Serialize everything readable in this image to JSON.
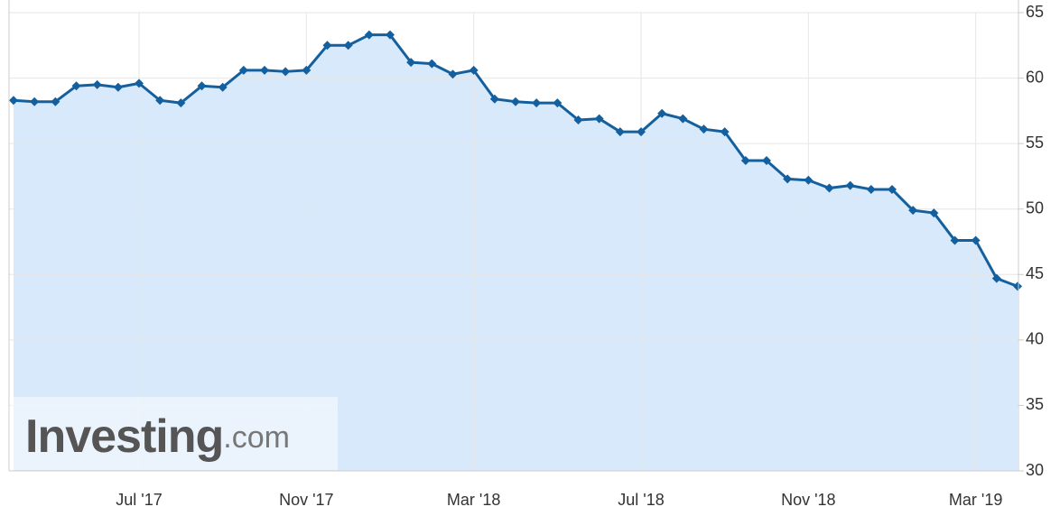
{
  "chart_data": {
    "type": "area",
    "categories": [
      null,
      null,
      null,
      null,
      null,
      null,
      "Jul '17",
      null,
      null,
      null,
      null,
      null,
      null,
      null,
      "Nov '17",
      null,
      null,
      null,
      null,
      null,
      null,
      null,
      "Mar '18",
      null,
      null,
      null,
      null,
      null,
      null,
      null,
      "Jul '18",
      null,
      null,
      null,
      null,
      null,
      null,
      null,
      "Nov '18",
      null,
      null,
      null,
      null,
      null,
      null,
      null,
      "Mar '19",
      null,
      null
    ],
    "values": [
      58.3,
      58.2,
      58.2,
      59.4,
      59.5,
      59.3,
      59.6,
      58.3,
      58.1,
      59.4,
      59.3,
      60.6,
      60.6,
      60.5,
      60.6,
      62.5,
      62.5,
      63.3,
      63.3,
      61.2,
      61.1,
      60.3,
      60.6,
      58.4,
      58.2,
      58.1,
      58.1,
      56.8,
      56.9,
      55.9,
      55.9,
      57.3,
      56.9,
      56.1,
      55.9,
      53.7,
      53.7,
      52.3,
      52.2,
      51.6,
      51.8,
      51.5,
      51.5,
      49.9,
      49.7,
      47.6,
      47.6,
      44.7,
      44.1
    ],
    "color": "#14609f",
    "fill_color": "#d7e9fa",
    "ylim": [
      30,
      65
    ],
    "yticks": [
      30,
      35,
      40,
      45,
      50,
      55,
      60,
      65
    ],
    "grid": true,
    "y_axis_side": "right"
  },
  "watermark": {
    "brand": "Investing",
    "suffix": ".com"
  }
}
